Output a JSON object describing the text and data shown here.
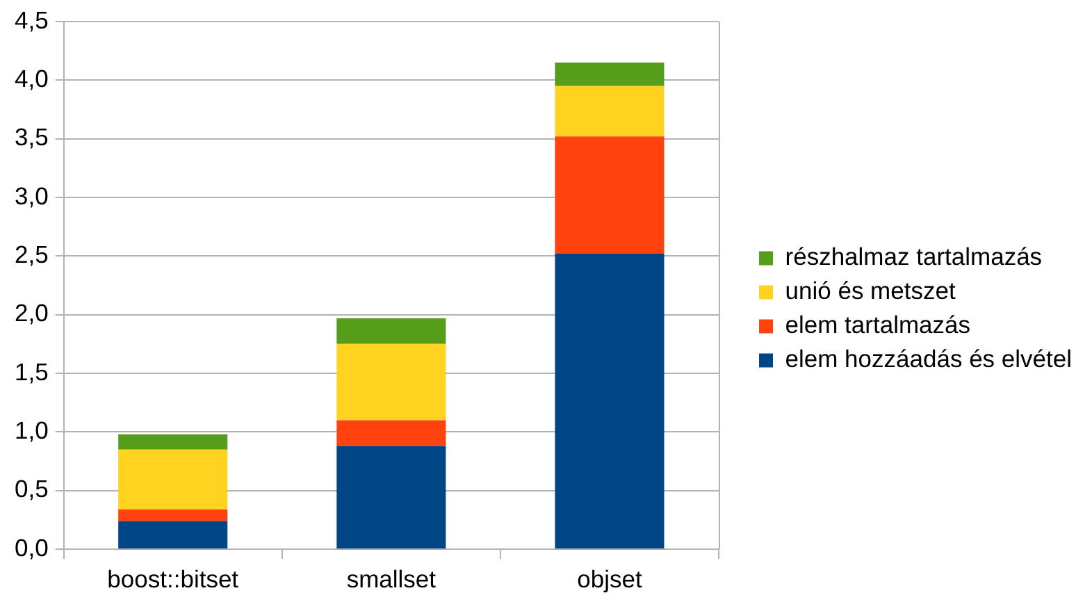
{
  "chart_data": {
    "type": "bar",
    "stacked": true,
    "categories": [
      "boost::bitset",
      "smallset",
      "objset"
    ],
    "series": [
      {
        "name": "elem hozzáadás és elvétel",
        "color": "#004586",
        "values": [
          0.24,
          0.88,
          2.52
        ]
      },
      {
        "name": "elem tartalmazás",
        "color": "#ff420e",
        "values": [
          0.1,
          0.22,
          1.0
        ]
      },
      {
        "name": "unió és metszet",
        "color": "#ffd320",
        "values": [
          0.51,
          0.65,
          0.43
        ]
      },
      {
        "name": "részhalmaz tartalmazás",
        "color": "#579d1c",
        "values": [
          0.13,
          0.22,
          0.2
        ]
      }
    ],
    "ylim": [
      0,
      4.5
    ],
    "yticks": [
      {
        "value": 0,
        "label": "0,0"
      },
      {
        "value": 0.5,
        "label": "0,5"
      },
      {
        "value": 1,
        "label": "1,0"
      },
      {
        "value": 1.5,
        "label": "1,5"
      },
      {
        "value": 2,
        "label": "2,0"
      },
      {
        "value": 2.5,
        "label": "2,5"
      },
      {
        "value": 3,
        "label": "3,0"
      },
      {
        "value": 3.5,
        "label": "3,5"
      },
      {
        "value": 4,
        "label": "4,0"
      },
      {
        "value": 4.5,
        "label": "4,5"
      }
    ],
    "grid": "y",
    "legend": "right"
  }
}
